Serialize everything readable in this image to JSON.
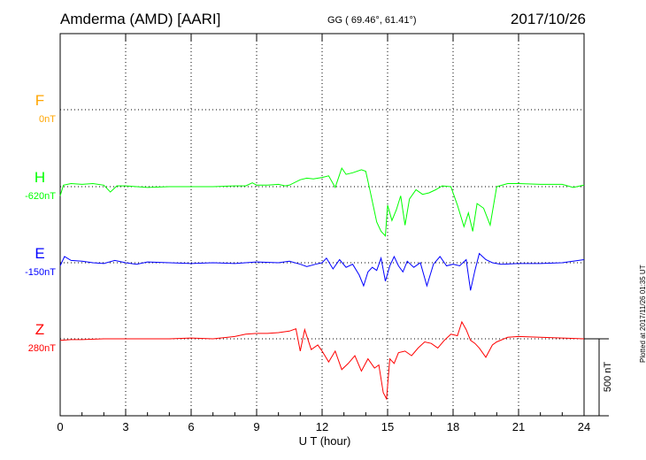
{
  "header": {
    "station": "Amderma (AMD)  [AARI]",
    "coords": "GG ( 69.46°,  61.41°)",
    "date": "2017/10/26"
  },
  "footer": {
    "plotted": "Plotted at 2017/11/26 01:35 UT"
  },
  "colors": {
    "F": "#ffa500",
    "H": "#00ff00",
    "E": "#0000ff",
    "Z": "#ff0000"
  },
  "chart_data": {
    "type": "line",
    "title": "Amderma (AMD)  [AARI]",
    "xlabel": "U T (hour)",
    "xlim": [
      0,
      24
    ],
    "xticks": [
      0,
      3,
      6,
      9,
      12,
      15,
      18,
      21,
      24
    ],
    "xtick_labels": [
      "0",
      "3",
      "6",
      "9",
      "12",
      "15",
      "18",
      "21",
      "24"
    ],
    "scale_bar": "500 nT",
    "grid": true,
    "channels": [
      {
        "name": "F",
        "baseline": "0nT",
        "values": []
      },
      {
        "name": "H",
        "baseline": "-620nT",
        "x": [
          0,
          0.15,
          0.5,
          1,
          1.5,
          2,
          2.3,
          2.6,
          3,
          4,
          5,
          6,
          7,
          8,
          8.5,
          8.8,
          9,
          9.5,
          10,
          10.3,
          10.5,
          11,
          11.3,
          11.6,
          12,
          12.3,
          12.6,
          12.9,
          13.1,
          13.4,
          13.8,
          14.0,
          14.2,
          14.5,
          14.7,
          14.9,
          15.0,
          15.2,
          15.4,
          15.6,
          15.8,
          16.0,
          16.3,
          16.6,
          16.9,
          17.2,
          17.5,
          17.9,
          18.2,
          18.5,
          18.7,
          18.9,
          19.1,
          19.4,
          19.7,
          20,
          20.5,
          21,
          22,
          23,
          23.5,
          24
        ],
        "values": [
          -60,
          10,
          20,
          15,
          20,
          10,
          -35,
          5,
          5,
          -5,
          0,
          0,
          0,
          5,
          5,
          25,
          10,
          10,
          15,
          5,
          10,
          45,
          55,
          50,
          60,
          70,
          -5,
          120,
          80,
          90,
          110,
          100,
          -30,
          -230,
          -290,
          -320,
          -120,
          -220,
          -150,
          -60,
          -250,
          -80,
          -20,
          -50,
          -40,
          -20,
          5,
          0,
          -120,
          -260,
          -170,
          -290,
          -110,
          -140,
          -250,
          0,
          20,
          20,
          15,
          15,
          -5,
          10
        ]
      },
      {
        "name": "E",
        "baseline": "-150nT",
        "x": [
          0,
          0.2,
          0.5,
          1,
          1.5,
          2,
          2.5,
          3,
          3.5,
          4,
          5,
          6,
          7,
          8,
          9,
          10,
          10.5,
          11,
          11.3,
          11.7,
          12,
          12.2,
          12.5,
          12.8,
          13.1,
          13.4,
          13.7,
          13.9,
          14.1,
          14.3,
          14.5,
          14.7,
          14.9,
          15.1,
          15.3,
          15.5,
          15.7,
          15.9,
          16.2,
          16.5,
          16.8,
          17.1,
          17.4,
          17.7,
          18,
          18.3,
          18.6,
          18.8,
          19.0,
          19.2,
          19.5,
          19.8,
          20.2,
          21,
          22,
          23,
          24
        ],
        "values": [
          -20,
          40,
          15,
          10,
          0,
          -5,
          15,
          0,
          -10,
          5,
          0,
          -5,
          0,
          -5,
          5,
          0,
          10,
          -10,
          -25,
          -10,
          0,
          30,
          -40,
          20,
          -30,
          -10,
          -80,
          -150,
          -60,
          -30,
          -50,
          30,
          -120,
          -20,
          40,
          -20,
          -60,
          10,
          -30,
          0,
          -150,
          -10,
          40,
          -20,
          -10,
          -20,
          20,
          -180,
          -50,
          60,
          20,
          0,
          -10,
          -5,
          -5,
          0,
          20
        ]
      },
      {
        "name": "Z",
        "baseline": "280nT",
        "x": [
          0,
          0.5,
          1,
          2,
          3,
          4,
          5,
          6,
          7,
          8,
          8.5,
          9,
          9.5,
          10,
          10.5,
          10.8,
          11,
          11.2,
          11.5,
          11.8,
          12,
          12.3,
          12.6,
          12.9,
          13.2,
          13.5,
          13.8,
          14.1,
          14.4,
          14.6,
          14.8,
          14.95,
          15.1,
          15.3,
          15.5,
          15.8,
          16.1,
          16.4,
          16.7,
          17,
          17.3,
          17.6,
          17.9,
          18.2,
          18.4,
          18.6,
          18.8,
          19.0,
          19.2,
          19.5,
          19.8,
          20,
          20.5,
          21,
          22,
          23,
          24
        ],
        "values": [
          -10,
          -5,
          -5,
          0,
          0,
          0,
          0,
          5,
          0,
          15,
          30,
          35,
          35,
          40,
          50,
          65,
          -80,
          60,
          -70,
          -40,
          -80,
          -150,
          -80,
          -200,
          -160,
          -110,
          -210,
          -130,
          -190,
          -170,
          -350,
          -390,
          -130,
          -160,
          -90,
          -80,
          -110,
          -60,
          -20,
          -30,
          -60,
          -10,
          30,
          20,
          110,
          60,
          -10,
          -30,
          -60,
          -120,
          -40,
          -20,
          10,
          15,
          10,
          5,
          0
        ]
      }
    ]
  }
}
